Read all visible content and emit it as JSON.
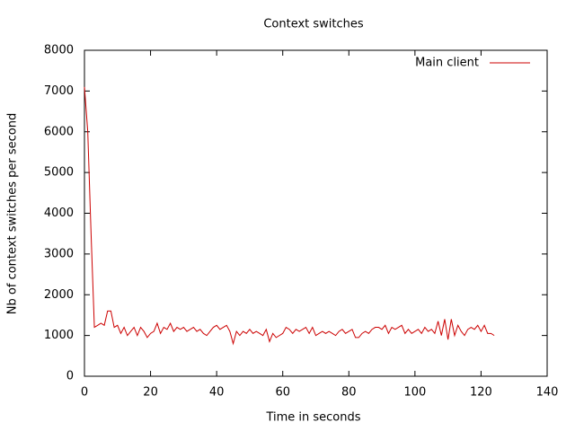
{
  "chart_data": {
    "type": "line",
    "title": "Context switches",
    "x_label": "Time in seconds",
    "y_label": "Nb of context switches per second",
    "x": [
      0,
      1,
      2,
      3,
      4,
      5,
      6,
      7,
      8,
      9,
      10,
      11,
      12,
      13,
      14,
      15,
      16,
      17,
      18,
      19,
      20,
      21,
      22,
      23,
      24,
      25,
      26,
      27,
      28,
      29,
      30,
      31,
      32,
      33,
      34,
      35,
      36,
      37,
      38,
      39,
      40,
      41,
      42,
      43,
      44,
      45,
      46,
      47,
      48,
      49,
      50,
      51,
      52,
      53,
      54,
      55,
      56,
      57,
      58,
      59,
      60,
      61,
      62,
      63,
      64,
      65,
      66,
      67,
      68,
      69,
      70,
      71,
      72,
      73,
      74,
      75,
      76,
      77,
      78,
      79,
      80,
      81,
      82,
      83,
      84,
      85,
      86,
      87,
      88,
      89,
      90,
      91,
      92,
      93,
      94,
      95,
      96,
      97,
      98,
      99,
      100,
      101,
      102,
      103,
      104,
      105,
      106,
      107,
      108,
      109,
      110,
      111,
      112,
      113,
      114,
      115,
      116,
      117,
      118,
      119,
      120,
      121,
      122,
      123,
      124
    ],
    "series": [
      {
        "name": "Main client",
        "color": "#cc0000",
        "values": [
          7100,
          6000,
          3500,
          1200,
          1250,
          1300,
          1250,
          1600,
          1600,
          1200,
          1250,
          1050,
          1200,
          1000,
          1100,
          1200,
          1000,
          1200,
          1100,
          950,
          1050,
          1100,
          1300,
          1050,
          1200,
          1150,
          1300,
          1100,
          1200,
          1150,
          1200,
          1100,
          1150,
          1200,
          1100,
          1150,
          1050,
          1000,
          1100,
          1200,
          1250,
          1150,
          1200,
          1250,
          1100,
          800,
          1100,
          1000,
          1100,
          1050,
          1150,
          1050,
          1100,
          1050,
          1000,
          1150,
          850,
          1050,
          950,
          1000,
          1050,
          1200,
          1150,
          1050,
          1150,
          1100,
          1150,
          1200,
          1050,
          1200,
          1000,
          1050,
          1100,
          1050,
          1100,
          1050,
          1000,
          1100,
          1150,
          1050,
          1100,
          1150,
          950,
          950,
          1050,
          1100,
          1050,
          1150,
          1200,
          1200,
          1150,
          1250,
          1050,
          1200,
          1150,
          1200,
          1250,
          1050,
          1150,
          1050,
          1100,
          1150,
          1050,
          1200,
          1100,
          1150,
          1050,
          1350,
          1000,
          1400,
          900,
          1400,
          1000,
          1250,
          1100,
          1000,
          1150,
          1200,
          1150,
          1250,
          1100,
          1250,
          1050,
          1050,
          1000
        ]
      }
    ],
    "xlim": [
      0,
      140
    ],
    "xticks": [
      0,
      20,
      40,
      60,
      80,
      100,
      120,
      140
    ],
    "ylim": [
      0,
      8000
    ],
    "yticks": [
      0,
      1000,
      2000,
      3000,
      4000,
      5000,
      6000,
      7000,
      8000
    ],
    "legend": "top-right"
  }
}
